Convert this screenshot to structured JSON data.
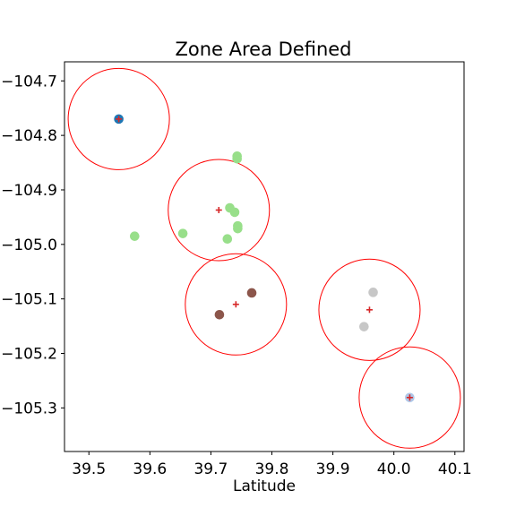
{
  "chart_data": {
    "type": "scatter",
    "title": "Zone Area Defined",
    "xlabel": "Latitude",
    "ylabel": "",
    "xlim": [
      39.46,
      40.115
    ],
    "ylim": [
      -105.38,
      -104.665
    ],
    "y_inverted": true,
    "grid": false,
    "x_ticks": [
      39.5,
      39.6,
      39.7,
      39.8,
      39.9,
      40.0,
      40.1
    ],
    "x_tick_labels": [
      "39.5",
      "39.6",
      "39.7",
      "39.8",
      "39.9",
      "40.0",
      "40.1"
    ],
    "y_ticks": [
      -104.7,
      -104.8,
      -104.9,
      -105.0,
      -105.1,
      -105.2,
      -105.3
    ],
    "y_tick_labels": [
      "−104.7",
      "−104.8",
      "−104.9",
      "−105.0",
      "−105.1",
      "−105.2",
      "−105.3"
    ],
    "clusters": [
      {
        "color": "#1f77b4",
        "center": [
          39.549,
          -104.77
        ],
        "radius": 0.083,
        "points": [
          [
            39.549,
            -104.77
          ]
        ]
      },
      {
        "color": "#98df8a",
        "center": [
          39.713,
          -104.937
        ],
        "radius": 0.083,
        "points": [
          [
            39.743,
            -104.838
          ],
          [
            39.743,
            -104.843
          ],
          [
            39.731,
            -104.933
          ],
          [
            39.739,
            -104.941
          ],
          [
            39.744,
            -104.966
          ],
          [
            39.744,
            -104.971
          ],
          [
            39.727,
            -104.99
          ],
          [
            39.654,
            -104.98
          ],
          [
            39.575,
            -104.985
          ]
        ]
      },
      {
        "color": "#8c564b",
        "center": [
          39.741,
          -105.11
        ],
        "radius": 0.083,
        "points": [
          [
            39.767,
            -105.089
          ],
          [
            39.714,
            -105.129
          ]
        ]
      },
      {
        "color": "#c7c7c7",
        "center": [
          39.96,
          -105.12
        ],
        "radius": 0.083,
        "points": [
          [
            39.966,
            -105.088
          ],
          [
            39.951,
            -105.151
          ]
        ]
      },
      {
        "color": "#aec7e8",
        "center": [
          40.026,
          -105.281
        ],
        "radius": 0.083,
        "points": [
          [
            40.026,
            -105.281
          ]
        ]
      }
    ],
    "center_marker_color": "#d62728",
    "circle_color": "#ff0000"
  }
}
